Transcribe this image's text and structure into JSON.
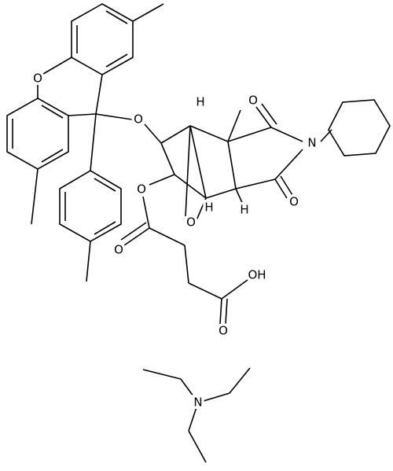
{
  "atoms": [
    {
      "label": "O"
    },
    {
      "label": "O"
    },
    {
      "label": "H"
    },
    {
      "label": "O"
    },
    {
      "label": "N"
    },
    {
      "label": "O"
    },
    {
      "label": "O"
    },
    {
      "label": "H"
    },
    {
      "label": "H"
    },
    {
      "label": "O"
    },
    {
      "label": "O"
    },
    {
      "label": "OH"
    },
    {
      "label": "O"
    },
    {
      "label": "N"
    }
  ]
}
